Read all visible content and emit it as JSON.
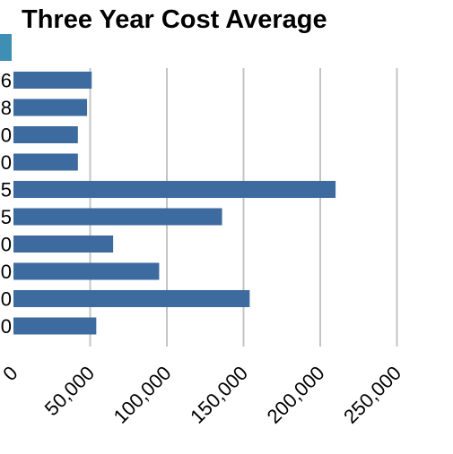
{
  "chart_data": {
    "type": "bar",
    "orientation": "horizontal",
    "title": "Three Year Cost Average",
    "xlabel": "",
    "ylabel": "",
    "xlim": [
      0,
      250000
    ],
    "x_ticks": [
      "0",
      "50,000",
      "100,000",
      "150,000",
      "200,000",
      "250,000"
    ],
    "grid": true,
    "bar_color": "#3e6b9f",
    "categories": [
      "6",
      "8",
      "0",
      "0",
      "5",
      "5",
      "0",
      "0",
      "0",
      "0"
    ],
    "values": [
      51000,
      48000,
      42000,
      42000,
      210000,
      136000,
      65000,
      95000,
      154000,
      54000
    ]
  }
}
